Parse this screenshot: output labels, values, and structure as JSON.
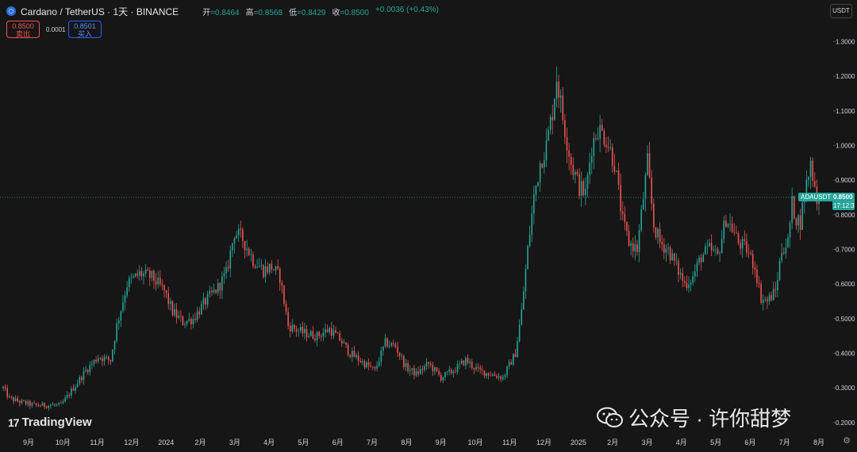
{
  "header": {
    "symbol": "Cardano / TetherUS · 1天 · BINANCE",
    "open_label": "开",
    "open_value": "=0.8464",
    "high_label": "高",
    "high_value": "=0.8568",
    "low_label": "低",
    "low_value": "=0.8429",
    "close_label": "收",
    "close_value": "=0.8500",
    "change": "+0.0036 (+0.43%)"
  },
  "trade": {
    "sell_price": "0.8500",
    "sell_label": "卖出",
    "spread": "0.0001",
    "buy_price": "0.8501",
    "buy_label": "买入"
  },
  "currency": "USDT",
  "ticker_tag": "ADAUSDT",
  "last_price": "0.8500",
  "countdown": "17:12:3",
  "brand": "TradingView",
  "watermark": "公众号 · 许你甜梦",
  "icons": {
    "coin": "cardano-coin-icon",
    "settings": "gear-icon",
    "wechat": "wechat-icon",
    "tv": "tradingview-logo-icon"
  },
  "colors": {
    "up": "#26a69a",
    "down": "#ef5350",
    "background": "#161616"
  },
  "chart_data": {
    "type": "candlestick",
    "title": "Cardano / TetherUS · 1天 · BINANCE",
    "y_axis_side": "right",
    "ylim": [
      0.17,
      1.42
    ],
    "y_ticks": [
      "0.2000",
      "0.3000",
      "0.4000",
      "0.5000",
      "0.6000",
      "0.7000",
      "0.8000",
      "0.9000",
      "1.0000",
      "1.1000",
      "1.2000",
      "1.3000"
    ],
    "x_ticks": [
      "9月",
      "10月",
      "11月",
      "12月",
      "2024",
      "2月",
      "3月",
      "4月",
      "5月",
      "6月",
      "7月",
      "8月",
      "9月",
      "10月",
      "11月",
      "12月",
      "2025",
      "2月",
      "3月",
      "4月",
      "5月",
      "6月",
      "7月",
      "8月"
    ],
    "last_price": 0.85,
    "period": "1天",
    "candle_interval": "1 day",
    "approx_close_path": [
      [
        0,
        0.3
      ],
      [
        3,
        0.27
      ],
      [
        8,
        0.26
      ],
      [
        15,
        0.25
      ],
      [
        22,
        0.25
      ],
      [
        28,
        0.25
      ],
      [
        34,
        0.3
      ],
      [
        40,
        0.35
      ],
      [
        46,
        0.39
      ],
      [
        52,
        0.38
      ],
      [
        55,
        0.48
      ],
      [
        60,
        0.6
      ],
      [
        66,
        0.63
      ],
      [
        72,
        0.62
      ],
      [
        78,
        0.58
      ],
      [
        82,
        0.52
      ],
      [
        87,
        0.49
      ],
      [
        92,
        0.5
      ],
      [
        98,
        0.55
      ],
      [
        104,
        0.59
      ],
      [
        108,
        0.63
      ],
      [
        112,
        0.75
      ],
      [
        116,
        0.73
      ],
      [
        121,
        0.67
      ],
      [
        126,
        0.64
      ],
      [
        130,
        0.65
      ],
      [
        134,
        0.62
      ],
      [
        138,
        0.48
      ],
      [
        145,
        0.46
      ],
      [
        152,
        0.45
      ],
      [
        158,
        0.47
      ],
      [
        163,
        0.44
      ],
      [
        168,
        0.4
      ],
      [
        175,
        0.37
      ],
      [
        180,
        0.35
      ],
      [
        185,
        0.43
      ],
      [
        190,
        0.42
      ],
      [
        195,
        0.36
      ],
      [
        200,
        0.34
      ],
      [
        206,
        0.37
      ],
      [
        212,
        0.33
      ],
      [
        218,
        0.35
      ],
      [
        224,
        0.38
      ],
      [
        230,
        0.35
      ],
      [
        236,
        0.34
      ],
      [
        242,
        0.33
      ],
      [
        248,
        0.4
      ],
      [
        251,
        0.52
      ],
      [
        254,
        0.7
      ],
      [
        257,
        0.85
      ],
      [
        260,
        0.95
      ],
      [
        263,
        1.0
      ],
      [
        266,
        1.1
      ],
      [
        268,
        1.2
      ],
      [
        271,
        1.08
      ],
      [
        275,
        0.95
      ],
      [
        279,
        0.88
      ],
      [
        282,
        0.86
      ],
      [
        285,
        1.0
      ],
      [
        288,
        1.05
      ],
      [
        292,
        1.02
      ],
      [
        296,
        0.95
      ],
      [
        300,
        0.78
      ],
      [
        303,
        0.72
      ],
      [
        307,
        0.7
      ],
      [
        310,
        0.85
      ],
      [
        312,
        0.95
      ],
      [
        315,
        0.77
      ],
      [
        318,
        0.72
      ],
      [
        322,
        0.7
      ],
      [
        326,
        0.65
      ],
      [
        330,
        0.6
      ],
      [
        334,
        0.62
      ],
      [
        338,
        0.68
      ],
      [
        342,
        0.7
      ],
      [
        346,
        0.68
      ],
      [
        350,
        0.79
      ],
      [
        353,
        0.76
      ],
      [
        356,
        0.72
      ],
      [
        360,
        0.7
      ],
      [
        364,
        0.65
      ],
      [
        367,
        0.56
      ],
      [
        370,
        0.55
      ],
      [
        374,
        0.58
      ],
      [
        377,
        0.7
      ],
      [
        380,
        0.72
      ],
      [
        382,
        0.83
      ],
      [
        384,
        0.79
      ],
      [
        386,
        0.78
      ],
      [
        388,
        0.86
      ],
      [
        391,
        0.95
      ],
      [
        394,
        0.85
      ]
    ]
  }
}
